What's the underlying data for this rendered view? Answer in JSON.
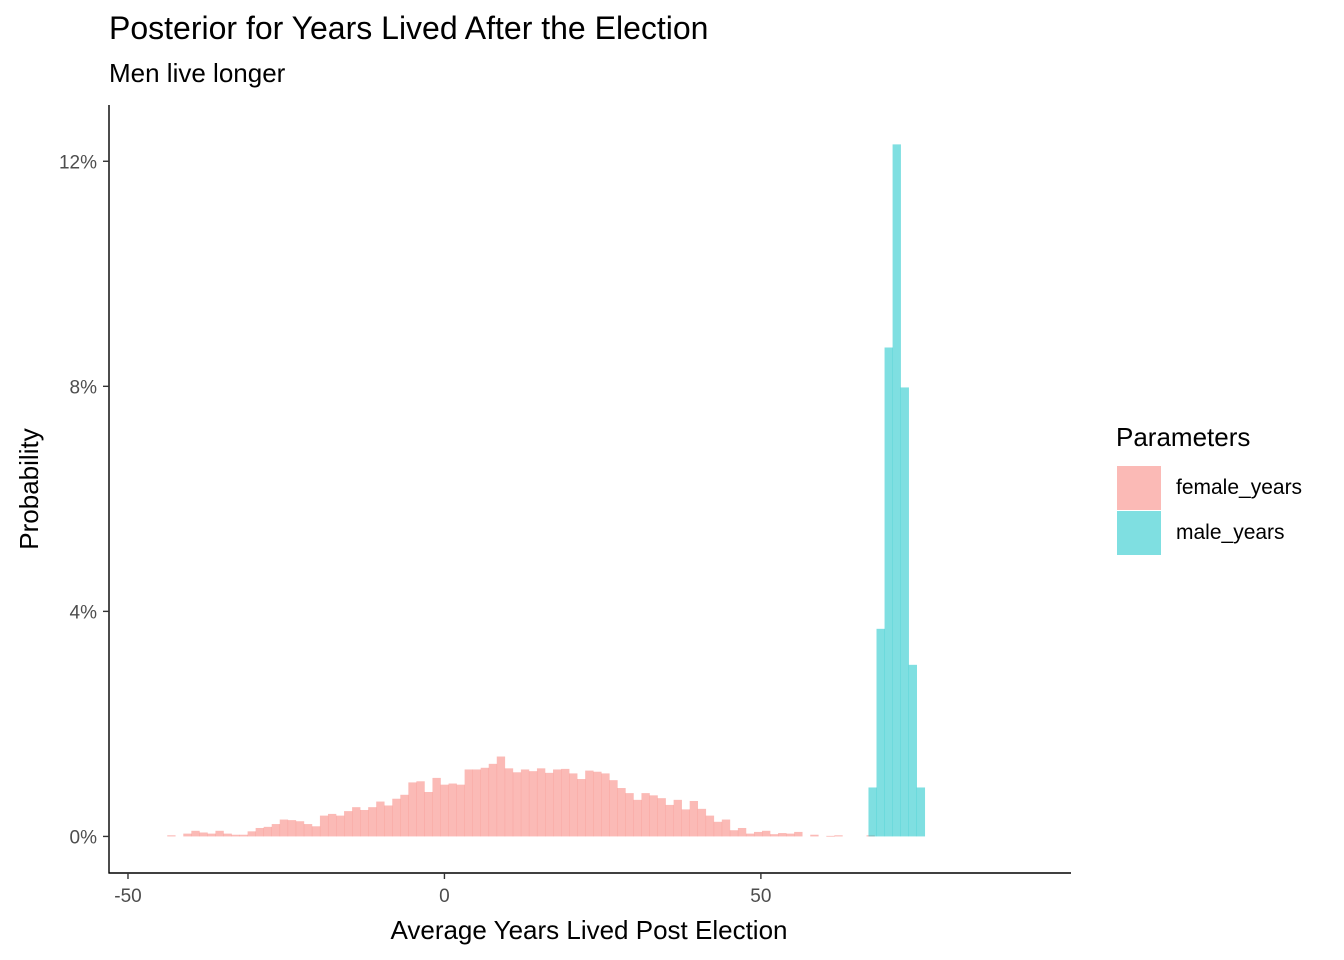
{
  "chart_data": {
    "type": "bar",
    "title": "Posterior for Years Lived After the Election",
    "subtitle": "Men live longer",
    "xlabel": "Average Years Lived Post Election",
    "ylabel": "Probability",
    "xlim": [
      -53,
      99
    ],
    "ylim": [
      -0.65,
      13.0
    ],
    "x_ticks": [
      -50,
      0,
      50
    ],
    "x_tick_labels": [
      "-50",
      "0",
      "50"
    ],
    "y_ticks": [
      0,
      4,
      8,
      12
    ],
    "y_tick_labels": [
      "0%",
      "4%",
      "8%",
      "12%"
    ],
    "bin_width": 1.27,
    "grid": false,
    "legend": {
      "title": "Parameters",
      "position": "right",
      "entries": [
        "female_years",
        "male_years"
      ]
    },
    "series": [
      {
        "name": "female_years",
        "color": "#F8766D",
        "opacity": 0.5,
        "x_start": -43.8,
        "values": [
          0.02,
          0.0,
          0.05,
          0.1,
          0.07,
          0.05,
          0.1,
          0.05,
          0.03,
          0.03,
          0.09,
          0.15,
          0.17,
          0.22,
          0.3,
          0.29,
          0.27,
          0.22,
          0.18,
          0.37,
          0.4,
          0.37,
          0.45,
          0.52,
          0.47,
          0.52,
          0.62,
          0.55,
          0.67,
          0.74,
          0.96,
          0.98,
          0.79,
          1.04,
          0.92,
          0.94,
          0.92,
          1.19,
          1.19,
          1.22,
          1.29,
          1.42,
          1.21,
          1.14,
          1.19,
          1.16,
          1.21,
          1.13,
          1.19,
          1.2,
          1.12,
          1.02,
          1.17,
          1.15,
          1.12,
          1.0,
          0.86,
          0.77,
          0.65,
          0.77,
          0.73,
          0.68,
          0.56,
          0.65,
          0.48,
          0.63,
          0.49,
          0.37,
          0.26,
          0.3,
          0.11,
          0.15,
          0.05,
          0.08,
          0.1,
          0.04,
          0.06,
          0.05,
          0.08,
          0.0,
          0.03,
          0.0,
          0.01,
          0.02,
          0.0,
          0.0,
          0.0,
          0.02
        ]
      },
      {
        "name": "male_years",
        "color": "#00BFC4",
        "opacity": 0.5,
        "x_start": 67.0,
        "values": [
          0.87,
          3.69,
          8.69,
          12.3,
          7.98,
          3.05,
          0.87
        ]
      }
    ]
  }
}
